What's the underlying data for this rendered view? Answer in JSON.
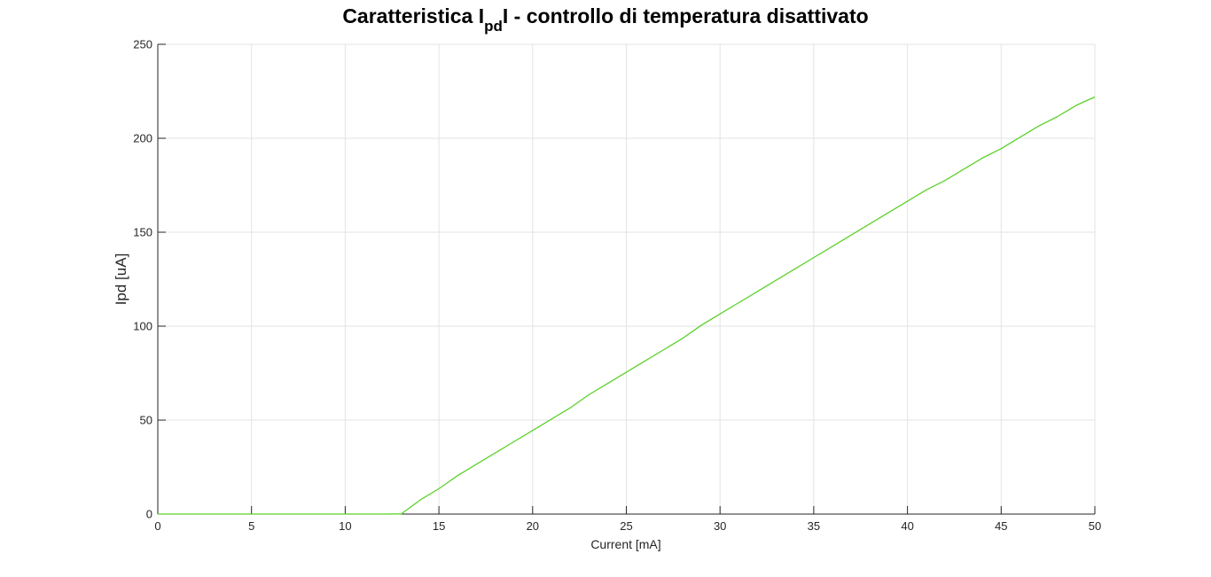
{
  "chart_data": {
    "type": "line",
    "title": {
      "prefix": "Caratteristica I",
      "subscript": "pd",
      "suffix": "I - controllo di temperatura disattivato"
    },
    "xlabel": "Current [mA]",
    "ylabel": "Ipd [uA]",
    "xlim": [
      0,
      50
    ],
    "ylim": [
      0,
      250
    ],
    "xticks": [
      0,
      5,
      10,
      15,
      20,
      25,
      30,
      35,
      40,
      45,
      50
    ],
    "yticks": [
      0,
      50,
      100,
      150,
      200,
      250
    ],
    "xtick_labels": [
      "0",
      "5",
      "10",
      "15",
      "20",
      "25",
      "30",
      "35",
      "40",
      "45",
      "50"
    ],
    "ytick_labels": [
      "0",
      "50",
      "100",
      "150",
      "200",
      "250"
    ],
    "grid": true,
    "series": [
      {
        "color": "#5bd12a",
        "x": [
          0,
          1,
          2,
          3,
          4,
          5,
          6,
          7,
          8,
          9,
          10,
          11,
          12,
          13,
          14,
          15,
          16,
          17,
          18,
          19,
          20,
          21,
          22,
          23,
          24,
          25,
          26,
          27,
          28,
          29,
          30,
          31,
          32,
          33,
          34,
          35,
          36,
          37,
          38,
          39,
          40,
          41,
          42,
          43,
          44,
          45,
          46,
          47,
          48,
          49,
          50
        ],
        "y": [
          0,
          0,
          0,
          0,
          0,
          0,
          0,
          0,
          0,
          0,
          0,
          0,
          0,
          0.1,
          7.5,
          13.5,
          20.5,
          26.5,
          32.5,
          38.5,
          44.5,
          50.5,
          56.5,
          63.5,
          69.5,
          75.5,
          81.5,
          87.5,
          93.5,
          100.5,
          106.5,
          112.5,
          118.5,
          124.5,
          130.5,
          136.5,
          142.5,
          148.5,
          154.5,
          160.5,
          166.5,
          172.5,
          177.5,
          183.5,
          189.5,
          194.5,
          200.5,
          206.5,
          211.5,
          217.5,
          222.0
        ]
      }
    ]
  }
}
